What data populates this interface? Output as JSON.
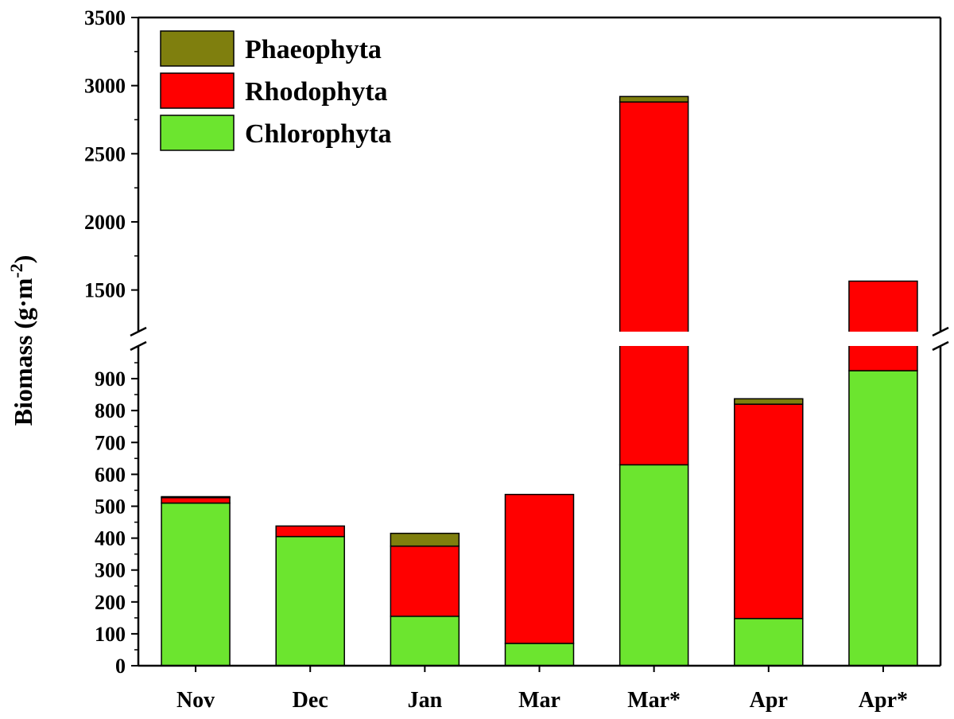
{
  "chart_data": {
    "type": "bar",
    "stacked": true,
    "categories": [
      "Nov",
      "Dec",
      "Jan",
      "Mar",
      "Mar*",
      "Apr",
      "Apr*"
    ],
    "series": [
      {
        "name": "Chlorophyta",
        "color": "#6CE52F",
        "values": [
          510,
          405,
          155,
          70,
          630,
          148,
          925
        ]
      },
      {
        "name": "Rhodophyta",
        "color": "#FF0000",
        "values": [
          17,
          33,
          220,
          467,
          2250,
          672,
          640
        ]
      },
      {
        "name": "Phaeophyta",
        "color": "#7F7F0E",
        "values": [
          3,
          0,
          40,
          0,
          40,
          17,
          0
        ]
      }
    ],
    "ylabel": "Biomass (g·m⁻²)",
    "ylabel_main": "Biomass (g·m",
    "ylabel_sup": "-2",
    "ylabel_close": ")",
    "xlabel": "",
    "y_axis_break": {
      "lower_range": [
        0,
        1000
      ],
      "upper_range": [
        1200,
        3500
      ]
    },
    "lower_ticks": [
      "0",
      "100",
      "200",
      "300",
      "400",
      "500",
      "600",
      "700",
      "800",
      "900"
    ],
    "upper_ticks": [
      "1500",
      "2000",
      "2500",
      "3000",
      "3500"
    ],
    "legend": {
      "position": "top-left",
      "entries": [
        "Phaeophyta",
        "Rhodophyta",
        "Chlorophyta"
      ]
    }
  }
}
